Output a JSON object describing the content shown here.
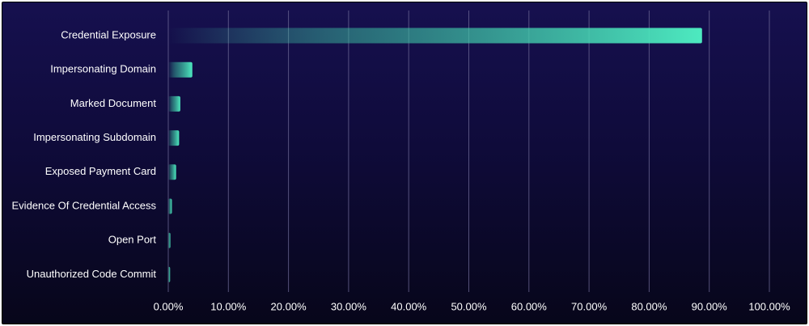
{
  "chart_data": {
    "type": "bar",
    "orientation": "horizontal",
    "categories": [
      "Credential Exposure",
      "Impersonating Domain",
      "Marked Document",
      "Impersonating Subdomain",
      "Exposed Payment Card",
      "Evidence Of Credential Access",
      "Open Port",
      "Unauthorized Code Commit"
    ],
    "values": [
      88.8,
      4.0,
      2.0,
      1.8,
      1.3,
      0.6,
      0.35,
      0.3
    ],
    "xlim": [
      0,
      100
    ],
    "xticks": [
      "0.00%",
      "10.00%",
      "20.00%",
      "30.00%",
      "40.00%",
      "50.00%",
      "60.00%",
      "70.00%",
      "80.00%",
      "90.00%",
      "100.00%"
    ],
    "grid": "vertical",
    "title": "",
    "xlabel": "",
    "ylabel": "",
    "colors": {
      "bar": "#4deac0",
      "grid": "#6e6a96",
      "text": "#ffffff"
    }
  }
}
